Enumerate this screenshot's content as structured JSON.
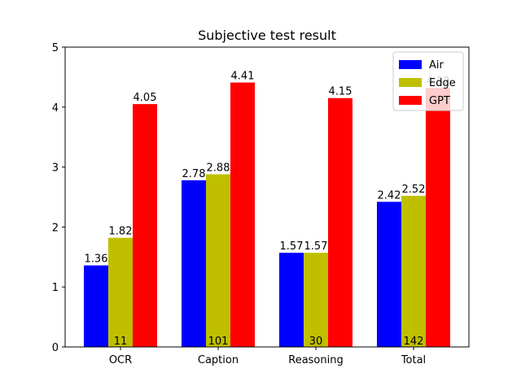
{
  "chart_data": {
    "type": "bar",
    "title": "Subjective test result",
    "xlabel": "",
    "ylabel": "",
    "categories": [
      "OCR",
      "Caption",
      "Reasoning",
      "Total"
    ],
    "counts": [
      "11",
      "101",
      "30",
      "142"
    ],
    "series": [
      {
        "name": "Air",
        "color": "#0000ff",
        "values": [
          1.36,
          2.78,
          1.57,
          2.42
        ],
        "labels": [
          "1.36",
          "2.78",
          "1.57",
          "2.42"
        ]
      },
      {
        "name": "Edge",
        "color": "#bfbf00",
        "values": [
          1.82,
          2.88,
          1.57,
          2.52
        ],
        "labels": [
          "1.82",
          "2.88",
          "1.57",
          "2.52"
        ]
      },
      {
        "name": "GPT",
        "color": "#ff0000",
        "values": [
          4.05,
          4.41,
          4.15,
          4.32
        ],
        "labels": [
          "4.05",
          "4.41",
          "4.15",
          "4.32"
        ]
      }
    ],
    "ylim": [
      0,
      5
    ],
    "yticks": [
      "0",
      "1",
      "2",
      "3",
      "4",
      "5"
    ],
    "grid": false,
    "legend_position": "top-right"
  }
}
